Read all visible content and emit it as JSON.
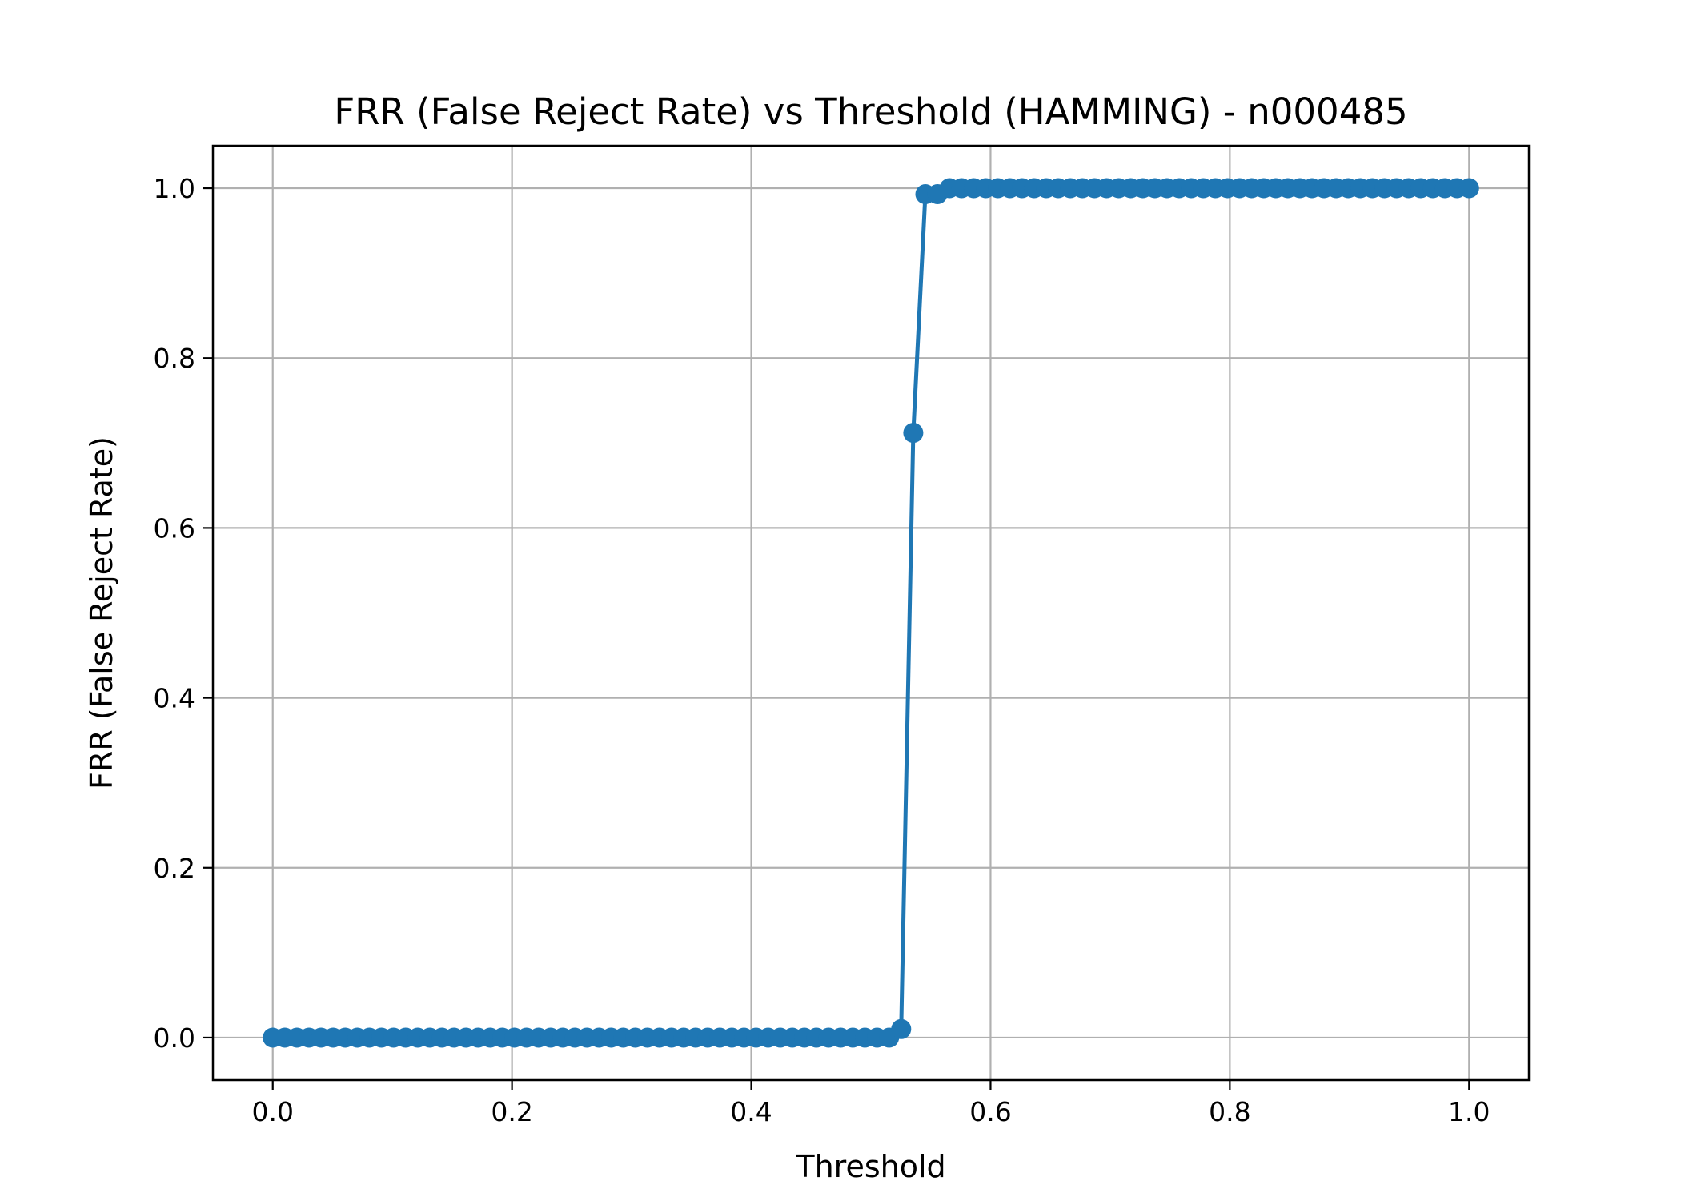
{
  "chart_data": {
    "type": "line",
    "title": "FRR (False Reject Rate) vs Threshold (HAMMING) - n000485",
    "xlabel": "Threshold",
    "ylabel": "FRR (False Reject Rate)",
    "xlim": [
      -0.05,
      1.05
    ],
    "ylim": [
      -0.05,
      1.05
    ],
    "xticks": [
      0.0,
      0.2,
      0.4,
      0.6,
      0.8,
      1.0
    ],
    "xtick_labels": [
      "0.0",
      "0.2",
      "0.4",
      "0.6",
      "0.8",
      "1.0"
    ],
    "yticks": [
      0.0,
      0.2,
      0.4,
      0.6,
      0.8,
      1.0
    ],
    "ytick_labels": [
      "0.0",
      "0.2",
      "0.4",
      "0.6",
      "0.8",
      "1.0"
    ],
    "grid": true,
    "legend": "none",
    "color": "#1f77b4",
    "marker": "circle",
    "x": [
      0.0,
      0.0101,
      0.0202,
      0.0303,
      0.0404,
      0.0505,
      0.0606,
      0.0707,
      0.0808,
      0.0909,
      0.101,
      0.1111,
      0.1212,
      0.1313,
      0.1414,
      0.1515,
      0.1616,
      0.1717,
      0.1818,
      0.1919,
      0.202,
      0.2121,
      0.2222,
      0.2323,
      0.2424,
      0.2525,
      0.2626,
      0.2727,
      0.2828,
      0.2929,
      0.303,
      0.3131,
      0.3232,
      0.3333,
      0.3434,
      0.3535,
      0.3636,
      0.3737,
      0.3838,
      0.3939,
      0.404,
      0.4141,
      0.4242,
      0.4343,
      0.4444,
      0.4545,
      0.4646,
      0.4747,
      0.4848,
      0.4949,
      0.5051,
      0.5152,
      0.5253,
      0.5354,
      0.5455,
      0.5556,
      0.5657,
      0.5758,
      0.5859,
      0.596,
      0.6061,
      0.6162,
      0.6263,
      0.6364,
      0.6465,
      0.6566,
      0.6667,
      0.6768,
      0.6869,
      0.697,
      0.7071,
      0.7172,
      0.7273,
      0.7374,
      0.7475,
      0.7576,
      0.7677,
      0.7778,
      0.7879,
      0.798,
      0.8081,
      0.8182,
      0.8283,
      0.8384,
      0.8485,
      0.8586,
      0.8687,
      0.8788,
      0.8889,
      0.899,
      0.9091,
      0.9192,
      0.9293,
      0.9394,
      0.9495,
      0.9596,
      0.9697,
      0.9798,
      0.9899,
      1.0
    ],
    "y": [
      0,
      0,
      0,
      0,
      0,
      0,
      0,
      0,
      0,
      0,
      0,
      0,
      0,
      0,
      0,
      0,
      0,
      0,
      0,
      0,
      0,
      0,
      0,
      0,
      0,
      0,
      0,
      0,
      0,
      0,
      0,
      0,
      0,
      0,
      0,
      0,
      0,
      0,
      0,
      0,
      0,
      0,
      0,
      0,
      0,
      0,
      0,
      0,
      0,
      0,
      0,
      0,
      0.01,
      0.712,
      0.993,
      0.993,
      1.0,
      1.0,
      1.0,
      1.0,
      1.0,
      1.0,
      1.0,
      1.0,
      1.0,
      1.0,
      1.0,
      1.0,
      1.0,
      1.0,
      1.0,
      1.0,
      1.0,
      1.0,
      1.0,
      1.0,
      1.0,
      1.0,
      1.0,
      1.0,
      1.0,
      1.0,
      1.0,
      1.0,
      1.0,
      1.0,
      1.0,
      1.0,
      1.0,
      1.0,
      1.0,
      1.0,
      1.0,
      1.0,
      1.0,
      1.0,
      1.0,
      1.0,
      1.0,
      1.0
    ]
  }
}
